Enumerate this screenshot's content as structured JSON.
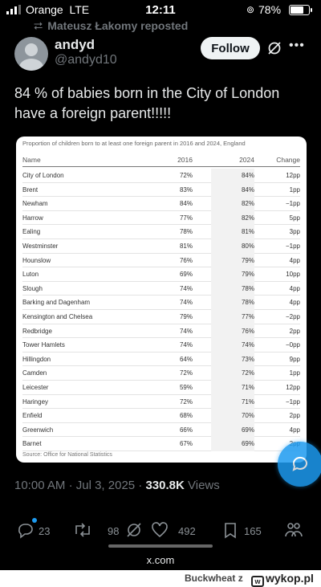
{
  "status_bar": {
    "carrier": "Orange",
    "network": "LTE",
    "time": "12:11",
    "battery": "78%",
    "battery_level": 0.78
  },
  "repost": {
    "text": "Mateusz Łakomy reposted"
  },
  "author": {
    "display_name": "andyd",
    "handle": "@andyd10"
  },
  "follow_label": "Follow",
  "tweet": {
    "text": "84 % of babies born in the City of London have a foreign parent!!!!!"
  },
  "table": {
    "title": "Proportion of children born to at least one foreign parent in 2016 and 2024, England",
    "headers": [
      "Name",
      "2016",
      "2024",
      "Change"
    ],
    "rows": [
      [
        "City of London",
        "72%",
        "84%",
        "12pp"
      ],
      [
        "Brent",
        "83%",
        "84%",
        "1pp"
      ],
      [
        "Newham",
        "84%",
        "82%",
        "−1pp"
      ],
      [
        "Harrow",
        "77%",
        "82%",
        "5pp"
      ],
      [
        "Ealing",
        "78%",
        "81%",
        "3pp"
      ],
      [
        "Westminster",
        "81%",
        "80%",
        "−1pp"
      ],
      [
        "Hounslow",
        "76%",
        "79%",
        "4pp"
      ],
      [
        "Luton",
        "69%",
        "79%",
        "10pp"
      ],
      [
        "Slough",
        "74%",
        "78%",
        "4pp"
      ],
      [
        "Barking and Dagenham",
        "74%",
        "78%",
        "4pp"
      ],
      [
        "Kensington and Chelsea",
        "79%",
        "77%",
        "−2pp"
      ],
      [
        "Redbridge",
        "74%",
        "76%",
        "2pp"
      ],
      [
        "Tower Hamlets",
        "74%",
        "74%",
        "−0pp"
      ],
      [
        "Hillingdon",
        "64%",
        "73%",
        "9pp"
      ],
      [
        "Camden",
        "72%",
        "72%",
        "1pp"
      ],
      [
        "Leicester",
        "59%",
        "71%",
        "12pp"
      ],
      [
        "Haringey",
        "72%",
        "71%",
        "−1pp"
      ],
      [
        "Enfield",
        "68%",
        "70%",
        "2pp"
      ],
      [
        "Greenwich",
        "66%",
        "69%",
        "4pp"
      ],
      [
        "Barnet",
        "67%",
        "69%",
        "2pp"
      ]
    ],
    "source": "Source: Office for National Statistics"
  },
  "meta": {
    "time": "10:00 AM",
    "separator": "·",
    "date": "Jul 3, 2025",
    "views_count": "330.8K",
    "views_label": "Views"
  },
  "actions": {
    "replies": "23",
    "reposts": "98",
    "likes": "492",
    "bookmarks": "165"
  },
  "url": "x.com",
  "watermark": {
    "user": "Buckwheat",
    "suffix": "z",
    "site": "wykop.pl"
  },
  "colors": {
    "accent": "#1d9bf0",
    "background": "#000000",
    "text": "#e7e9ea",
    "muted": "#71767b"
  }
}
